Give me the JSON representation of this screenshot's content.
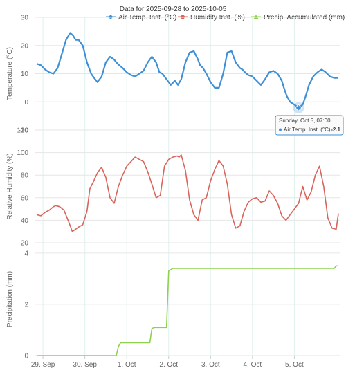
{
  "title": "Data for 2025-09-28 to 2025-10-05",
  "legend": [
    {
      "name": "Air Temp. Inst. (°C)",
      "color": "#3f8fd6",
      "icon": "diamond-marker-icon"
    },
    {
      "name": "Humidity Inst. (%)",
      "color": "#d9645b",
      "icon": "circle-marker-icon"
    },
    {
      "name": "Precip. Accumulated (mm)",
      "color": "#8fd14f",
      "icon": "triangle-marker-icon"
    }
  ],
  "tooltip": {
    "time": "Sunday, Oct 5, 07:00",
    "series": "Air Temp. Inst. (°C):",
    "value": "-2.1"
  },
  "chart_data": [
    {
      "type": "line",
      "name": "temperature",
      "ylabel": "Temperature (°C)",
      "ylim": [
        -10,
        30
      ],
      "yticks": [
        "30",
        "20",
        "10",
        "0",
        "-10"
      ],
      "xlim": [
        -0.2,
        7.1
      ],
      "xticks": [
        "29. Sep",
        "30. Sep",
        "1. Oct",
        "2. Oct",
        "3. Oct",
        "4. Oct",
        "5. Oct"
      ],
      "series": [
        {
          "name": "Air Temp. Inst. (°C)",
          "color": "#3f8fd6",
          "x": [
            -0.15,
            -0.05,
            0.05,
            0.15,
            0.25,
            0.35,
            0.45,
            0.55,
            0.65,
            0.72,
            0.78,
            0.85,
            0.95,
            1.05,
            1.15,
            1.22,
            1.3,
            1.4,
            1.5,
            1.6,
            1.7,
            1.75,
            1.82,
            1.9,
            2.0,
            2.1,
            2.2,
            2.3,
            2.4,
            2.5,
            2.6,
            2.7,
            2.78,
            2.85,
            2.95,
            3.05,
            3.15,
            3.22,
            3.3,
            3.4,
            3.5,
            3.6,
            3.7,
            3.75,
            3.82,
            3.9,
            4.0,
            4.1,
            4.2,
            4.3,
            4.4,
            4.5,
            4.6,
            4.7,
            4.76,
            4.82,
            4.9,
            5.0,
            5.1,
            5.2,
            5.3,
            5.4,
            5.5,
            5.6,
            5.7,
            5.75,
            5.82,
            5.9,
            6.0,
            6.1,
            6.2,
            6.27,
            6.35,
            6.45,
            6.55,
            6.65,
            6.75,
            6.85,
            6.95,
            7.05
          ],
          "y": [
            13.5,
            13,
            11.5,
            10.5,
            10,
            12,
            17,
            22,
            24.5,
            23.5,
            22,
            22,
            20,
            14,
            10,
            8.5,
            7,
            9,
            14,
            16,
            15,
            14,
            13,
            12,
            10.5,
            9.5,
            9,
            10,
            11,
            14,
            16,
            14,
            10.5,
            10,
            8,
            6,
            7.5,
            6,
            8,
            14,
            17.5,
            18,
            15,
            13,
            12,
            10,
            7,
            5,
            5,
            10,
            17.5,
            18,
            14,
            12,
            11.5,
            10.5,
            9.5,
            9,
            7.5,
            6,
            8,
            10.5,
            11,
            10,
            7.5,
            5,
            2,
            0,
            -1,
            -2.1,
            -1,
            2,
            6,
            9,
            10.5,
            11.5,
            10.5,
            9,
            8.5,
            8.5
          ]
        }
      ]
    },
    {
      "type": "line",
      "name": "humidity",
      "ylabel": "Relative Humidity (%)",
      "ylim": [
        20,
        120
      ],
      "yticks": [
        "120",
        "100",
        "80",
        "60",
        "40",
        "20"
      ],
      "xlim": [
        -0.2,
        7.1
      ],
      "xticks": [
        "29. Sep",
        "30. Sep",
        "1. Oct",
        "2. Oct",
        "3. Oct",
        "4. Oct",
        "5. Oct"
      ],
      "series": [
        {
          "name": "Humidity Inst. (%)",
          "color": "#d9645b",
          "x": [
            -0.15,
            -0.05,
            0.05,
            0.15,
            0.25,
            0.3,
            0.4,
            0.5,
            0.6,
            0.7,
            0.78,
            0.85,
            0.95,
            1.05,
            1.12,
            1.2,
            1.3,
            1.4,
            1.5,
            1.6,
            1.7,
            1.8,
            1.9,
            2.0,
            2.1,
            2.2,
            2.3,
            2.4,
            2.5,
            2.6,
            2.7,
            2.8,
            2.9,
            3.0,
            3.1,
            3.2,
            3.25,
            3.3,
            3.4,
            3.5,
            3.6,
            3.7,
            3.8,
            3.9,
            4.0,
            4.1,
            4.2,
            4.3,
            4.4,
            4.5,
            4.6,
            4.7,
            4.8,
            4.9,
            5.0,
            5.1,
            5.2,
            5.3,
            5.4,
            5.5,
            5.6,
            5.7,
            5.8,
            5.9,
            6.0,
            6.1,
            6.2,
            6.3,
            6.4,
            6.5,
            6.6,
            6.7,
            6.8,
            6.9,
            7.0,
            7.05
          ],
          "y": [
            45,
            44,
            47,
            49,
            52,
            53,
            52,
            49,
            40,
            30,
            32,
            34,
            36,
            48,
            68,
            74,
            82,
            87,
            78,
            60,
            55,
            70,
            80,
            88,
            92,
            96,
            94,
            92,
            83,
            72,
            60,
            62,
            88,
            94,
            96,
            97,
            96,
            98,
            84,
            58,
            45,
            40,
            58,
            60,
            75,
            85,
            93,
            88,
            72,
            45,
            33,
            35,
            48,
            56,
            59,
            60,
            56,
            57,
            66,
            62,
            55,
            44,
            40,
            45,
            50,
            55,
            70,
            58,
            65,
            80,
            88,
            70,
            42,
            33,
            32,
            46
          ]
        }
      ]
    },
    {
      "type": "area",
      "name": "precipitation",
      "ylabel": "Precipitation (mm)",
      "ylim": [
        0,
        4.4
      ],
      "yticks": [
        "4",
        "2",
        "0"
      ],
      "xlim": [
        -0.2,
        7.1
      ],
      "xticks": [
        "29. Sep",
        "30. Sep",
        "1. Oct",
        "2. Oct",
        "3. Oct",
        "4. Oct",
        "5. Oct"
      ],
      "series": [
        {
          "name": "Precip. Accumulated (mm)",
          "color": "#8fd14f",
          "x": [
            -0.15,
            1.75,
            1.8,
            1.85,
            2.55,
            2.6,
            2.65,
            2.95,
            3.0,
            3.05,
            3.1,
            6.95,
            7.0,
            7.05
          ],
          "y": [
            0,
            0,
            0.35,
            0.5,
            0.5,
            1.05,
            1.1,
            1.1,
            3.3,
            3.35,
            3.4,
            3.4,
            3.5,
            3.5
          ]
        }
      ]
    }
  ]
}
